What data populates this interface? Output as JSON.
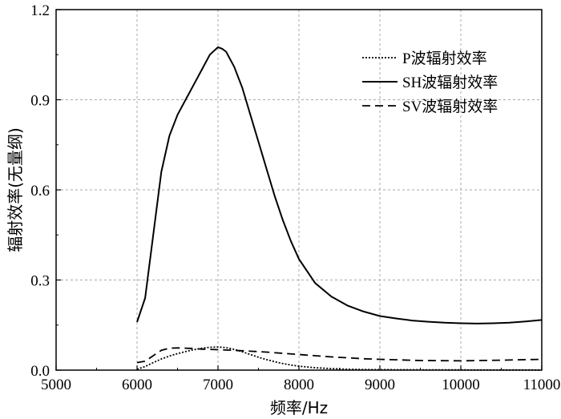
{
  "chart_data": {
    "type": "line",
    "title": "",
    "xlabel": "频率/Hz",
    "ylabel": "辐射效率(无量纲)",
    "xlim": [
      5000,
      11000
    ],
    "ylim": [
      0,
      1.2
    ],
    "xticks": [
      5000,
      6000,
      7000,
      8000,
      9000,
      10000,
      11000
    ],
    "yticks": [
      0.0,
      0.3,
      0.6,
      0.9,
      1.2
    ],
    "ytick_labels": [
      "0.0",
      "0.3",
      "0.6",
      "0.9",
      "1.2"
    ],
    "grid": true,
    "legend_position": "top-right",
    "series": [
      {
        "name": "P波辐射效率",
        "style": "dotted",
        "x": [
          6000,
          6100,
          6200,
          6300,
          6400,
          6500,
          6600,
          6700,
          6800,
          6900,
          7000,
          7100,
          7200,
          7300,
          7400,
          7500,
          7600,
          7700,
          7800,
          7900,
          8000,
          8200,
          8400,
          8600,
          8800,
          9000,
          9500,
          10000,
          10500,
          11000
        ],
        "y": [
          0.003,
          0.012,
          0.025,
          0.037,
          0.047,
          0.055,
          0.062,
          0.068,
          0.073,
          0.076,
          0.077,
          0.075,
          0.069,
          0.061,
          0.052,
          0.043,
          0.035,
          0.028,
          0.022,
          0.017,
          0.013,
          0.008,
          0.005,
          0.003,
          0.002,
          0.0015,
          0.001,
          0.0008,
          0.0006,
          0.0005
        ]
      },
      {
        "name": "SH波辐射效率",
        "style": "solid",
        "x": [
          6000,
          6100,
          6200,
          6300,
          6400,
          6500,
          6600,
          6700,
          6800,
          6900,
          7000,
          7050,
          7100,
          7200,
          7300,
          7400,
          7500,
          7600,
          7700,
          7800,
          7900,
          8000,
          8200,
          8400,
          8600,
          8800,
          9000,
          9200,
          9400,
          9600,
          9800,
          10000,
          10200,
          10400,
          10600,
          10800,
          11000
        ],
        "y": [
          0.16,
          0.24,
          0.45,
          0.66,
          0.78,
          0.85,
          0.9,
          0.95,
          1.0,
          1.05,
          1.075,
          1.07,
          1.06,
          1.01,
          0.94,
          0.85,
          0.76,
          0.67,
          0.58,
          0.5,
          0.43,
          0.37,
          0.29,
          0.245,
          0.215,
          0.195,
          0.18,
          0.172,
          0.165,
          0.161,
          0.158,
          0.156,
          0.155,
          0.156,
          0.158,
          0.162,
          0.167
        ]
      },
      {
        "name": "SV波辐射效率",
        "style": "dashed",
        "x": [
          6000,
          6100,
          6200,
          6300,
          6400,
          6500,
          6600,
          6700,
          6800,
          6900,
          7000,
          7200,
          7400,
          7600,
          7800,
          8000,
          8200,
          8400,
          8600,
          8800,
          9000,
          9500,
          10000,
          10500,
          11000
        ],
        "y": [
          0.025,
          0.03,
          0.048,
          0.066,
          0.073,
          0.074,
          0.073,
          0.072,
          0.07,
          0.069,
          0.068,
          0.066,
          0.063,
          0.06,
          0.056,
          0.052,
          0.048,
          0.044,
          0.041,
          0.038,
          0.036,
          0.032,
          0.031,
          0.033,
          0.036
        ]
      }
    ]
  }
}
